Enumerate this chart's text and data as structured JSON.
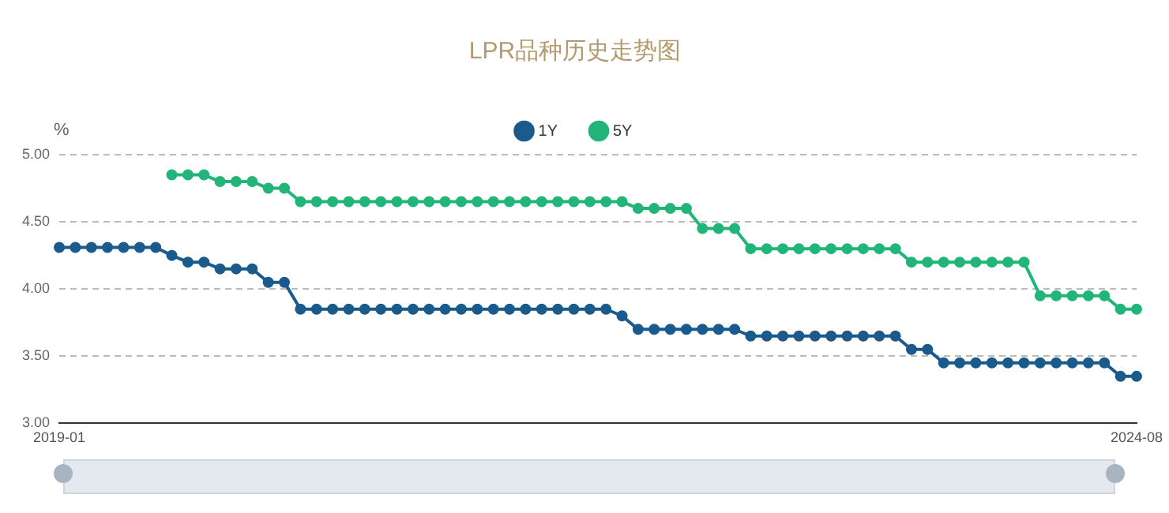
{
  "chart_data": {
    "type": "line",
    "title": "LPR品种历史走势图",
    "ylabel": "%",
    "categories": [
      "2019-01",
      null,
      null,
      null,
      null,
      null,
      null,
      null,
      null,
      null,
      null,
      null,
      null,
      null,
      null,
      null,
      null,
      null,
      null,
      null,
      null,
      null,
      null,
      null,
      null,
      null,
      null,
      null,
      null,
      null,
      null,
      null,
      null,
      null,
      null,
      null,
      null,
      null,
      null,
      null,
      null,
      null,
      null,
      null,
      null,
      null,
      null,
      null,
      null,
      null,
      null,
      null,
      null,
      null,
      null,
      null,
      null,
      null,
      null,
      null,
      null,
      null,
      null,
      null,
      null,
      null,
      null,
      "2024-08"
    ],
    "series": [
      {
        "name": "1Y",
        "color": "#1b5a8c",
        "values": [
          4.31,
          4.31,
          4.31,
          4.31,
          4.31,
          4.31,
          4.31,
          4.25,
          4.2,
          4.2,
          4.15,
          4.15,
          4.15,
          4.05,
          4.05,
          3.85,
          3.85,
          3.85,
          3.85,
          3.85,
          3.85,
          3.85,
          3.85,
          3.85,
          3.85,
          3.85,
          3.85,
          3.85,
          3.85,
          3.85,
          3.85,
          3.85,
          3.85,
          3.85,
          3.85,
          3.8,
          3.7,
          3.7,
          3.7,
          3.7,
          3.7,
          3.7,
          3.7,
          3.65,
          3.65,
          3.65,
          3.65,
          3.65,
          3.65,
          3.65,
          3.65,
          3.65,
          3.65,
          3.55,
          3.55,
          3.45,
          3.45,
          3.45,
          3.45,
          3.45,
          3.45,
          3.45,
          3.45,
          3.45,
          3.45,
          3.45,
          3.35,
          3.35
        ]
      },
      {
        "name": "5Y",
        "color": "#22b57a",
        "values": [
          null,
          null,
          null,
          null,
          null,
          null,
          null,
          4.85,
          4.85,
          4.85,
          4.8,
          4.8,
          4.8,
          4.75,
          4.75,
          4.65,
          4.65,
          4.65,
          4.65,
          4.65,
          4.65,
          4.65,
          4.65,
          4.65,
          4.65,
          4.65,
          4.65,
          4.65,
          4.65,
          4.65,
          4.65,
          4.65,
          4.65,
          4.65,
          4.65,
          4.65,
          4.6,
          4.6,
          4.6,
          4.6,
          4.45,
          4.45,
          4.45,
          4.3,
          4.3,
          4.3,
          4.3,
          4.3,
          4.3,
          4.3,
          4.3,
          4.3,
          4.3,
          4.2,
          4.2,
          4.2,
          4.2,
          4.2,
          4.2,
          4.2,
          4.2,
          3.95,
          3.95,
          3.95,
          3.95,
          3.95,
          3.85,
          3.85
        ]
      }
    ],
    "ylim": [
      3,
      5
    ],
    "yticks": [
      {
        "value": 3,
        "label": "3.00"
      },
      {
        "value": 3.5,
        "label": "3.50"
      },
      {
        "value": 4,
        "label": "4.00"
      },
      {
        "value": 4.5,
        "label": "4.50"
      },
      {
        "value": 5,
        "label": "5.00"
      }
    ],
    "grid": "y",
    "legend": "top",
    "marker": "circle",
    "line_style": "solid"
  }
}
